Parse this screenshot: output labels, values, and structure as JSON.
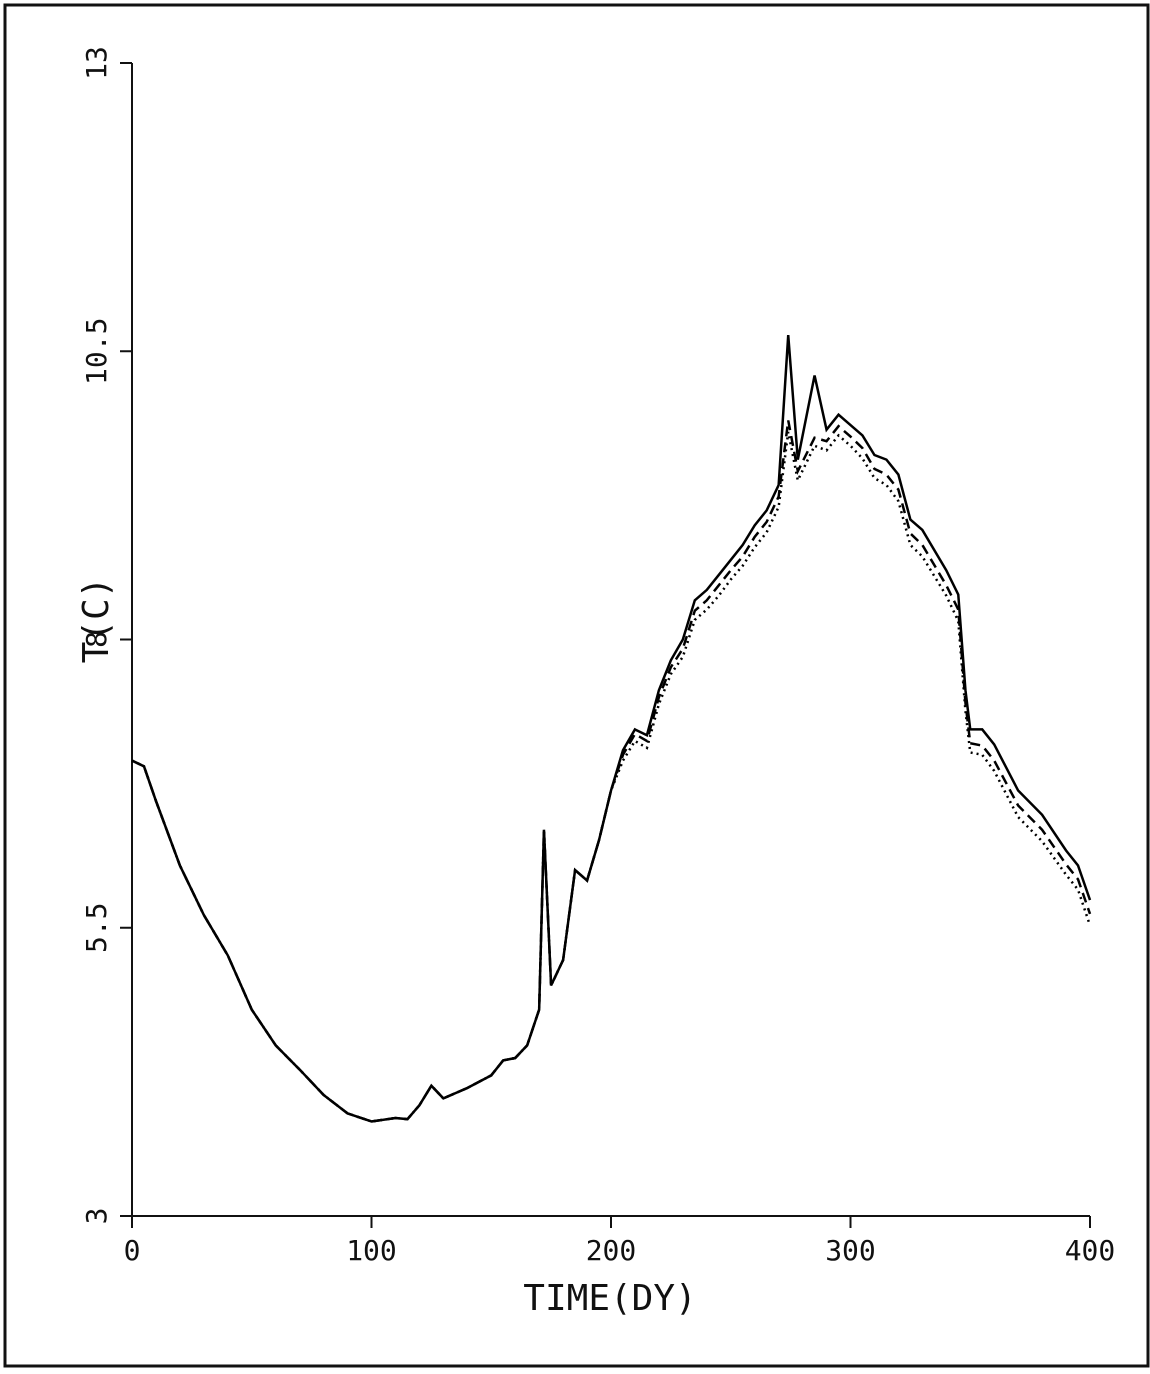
{
  "chart_data": {
    "type": "line",
    "xlabel": "TIME(DY)",
    "ylabel": "T(C)",
    "xlim": [
      0,
      400
    ],
    "xticks": [
      0,
      100,
      200,
      300,
      400
    ],
    "ylim": [
      3,
      13
    ],
    "yticks": [
      3,
      5.5,
      8,
      10.5,
      13
    ],
    "grid": false,
    "x": [
      0,
      5,
      10,
      20,
      30,
      40,
      50,
      60,
      70,
      80,
      90,
      100,
      110,
      115,
      120,
      125,
      130,
      140,
      150,
      155,
      160,
      165,
      170,
      172,
      175,
      180,
      185,
      190,
      195,
      200,
      205,
      210,
      215,
      220,
      225,
      230,
      235,
      240,
      245,
      250,
      255,
      260,
      265,
      270,
      274,
      278,
      285,
      290,
      295,
      300,
      305,
      310,
      315,
      320,
      325,
      330,
      340,
      345,
      348,
      350,
      355,
      360,
      370,
      380,
      390,
      395,
      400
    ],
    "series": [
      {
        "color": "#000000",
        "line_style": "solid",
        "values": [
          6.95,
          6.9,
          6.6,
          6.04,
          5.61,
          5.26,
          4.79,
          4.48,
          4.27,
          4.05,
          3.89,
          3.82,
          3.85,
          3.84,
          3.96,
          4.13,
          4.02,
          4.11,
          4.22,
          4.35,
          4.37,
          4.48,
          4.79,
          6.35,
          5.0,
          5.22,
          6.0,
          5.91,
          6.26,
          6.69,
          7.04,
          7.22,
          7.17,
          7.56,
          7.82,
          8.0,
          8.34,
          8.43,
          8.56,
          8.69,
          8.82,
          8.99,
          9.12,
          9.34,
          10.64,
          9.56,
          10.29,
          9.82,
          9.95,
          9.86,
          9.77,
          9.6,
          9.56,
          9.43,
          9.04,
          8.95,
          8.6,
          8.39,
          7.56,
          7.22,
          7.22,
          7.09,
          6.69,
          6.48,
          6.17,
          6.04,
          5.74
        ]
      },
      {
        "color": "#000000",
        "line_style": "dashed",
        "values": [
          6.95,
          6.9,
          6.6,
          6.04,
          5.61,
          5.26,
          4.79,
          4.48,
          4.27,
          4.05,
          3.89,
          3.82,
          3.85,
          3.84,
          3.96,
          4.13,
          4.02,
          4.11,
          4.22,
          4.35,
          4.37,
          4.48,
          4.79,
          6.35,
          5.0,
          5.22,
          6.0,
          5.91,
          6.26,
          6.69,
          7.0,
          7.18,
          7.12,
          7.5,
          7.76,
          7.92,
          8.25,
          8.34,
          8.47,
          8.6,
          8.72,
          8.89,
          9.02,
          9.24,
          9.9,
          9.46,
          9.75,
          9.72,
          9.85,
          9.76,
          9.66,
          9.48,
          9.43,
          9.3,
          8.92,
          8.82,
          8.47,
          8.26,
          7.45,
          7.1,
          7.08,
          6.95,
          6.56,
          6.35,
          6.05,
          5.92,
          5.62
        ]
      },
      {
        "color": "#000000",
        "line_style": "dotted",
        "values": [
          6.95,
          6.9,
          6.6,
          6.04,
          5.61,
          5.26,
          4.79,
          4.48,
          4.27,
          4.05,
          3.89,
          3.82,
          3.85,
          3.84,
          3.96,
          4.13,
          4.02,
          4.11,
          4.22,
          4.35,
          4.37,
          4.48,
          4.79,
          6.35,
          5.0,
          5.22,
          6.0,
          5.91,
          6.26,
          6.69,
          6.95,
          7.12,
          7.06,
          7.44,
          7.7,
          7.85,
          8.17,
          8.26,
          8.38,
          8.52,
          8.64,
          8.8,
          8.93,
          9.15,
          9.8,
          9.38,
          9.68,
          9.64,
          9.77,
          9.68,
          9.57,
          9.4,
          9.34,
          9.2,
          8.82,
          8.72,
          8.38,
          8.16,
          7.38,
          7.02,
          7.0,
          6.86,
          6.46,
          6.25,
          5.96,
          5.83,
          5.52
        ]
      }
    ]
  }
}
